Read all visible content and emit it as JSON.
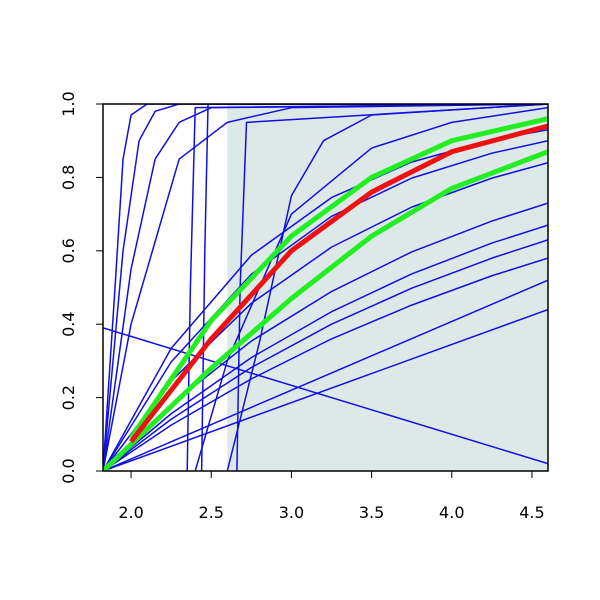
{
  "chart_data": {
    "type": "line",
    "xlim": [
      1.825,
      4.6
    ],
    "ylim": [
      0,
      1
    ],
    "xticks": [
      {
        "value": 2,
        "label": "2.0"
      },
      {
        "value": 2.5,
        "label": "2.5"
      },
      {
        "value": 3,
        "label": "3.0"
      },
      {
        "value": 3.5,
        "label": "3.5"
      },
      {
        "value": 4,
        "label": "4.0"
      },
      {
        "value": 4.5,
        "label": "4.5"
      }
    ],
    "yticks": [
      {
        "value": 0,
        "label": "0.0"
      },
      {
        "value": 0.2,
        "label": "0.2"
      },
      {
        "value": 0.4,
        "label": "0.4"
      },
      {
        "value": 0.6,
        "label": "0.6"
      },
      {
        "value": 0.8,
        "label": "0.8"
      },
      {
        "value": 1,
        "label": "1.0"
      }
    ],
    "shaded_region": {
      "x": [
        2.6,
        4.6
      ],
      "color": "#dde9e9"
    },
    "series": [
      {
        "color": "#1010e0",
        "x": [
          1.825,
          1.9,
          1.95,
          2.0,
          2.1,
          2.3,
          4.6
        ],
        "values": [
          0,
          0.5,
          0.85,
          0.97,
          1,
          1,
          1
        ]
      },
      {
        "color": "#1010e0",
        "x": [
          1.825,
          1.95,
          2.05,
          2.15,
          2.3,
          4.6
        ],
        "values": [
          0,
          0.6,
          0.9,
          0.98,
          1,
          1
        ]
      },
      {
        "color": "#1010e0",
        "x": [
          1.825,
          2.0,
          2.15,
          2.3,
          2.5,
          4.6
        ],
        "values": [
          0,
          0.55,
          0.85,
          0.95,
          0.99,
          1
        ]
      },
      {
        "color": "#1010e0",
        "x": [
          1.825,
          2.0,
          2.3,
          2.6,
          3.0,
          4.6
        ],
        "values": [
          0,
          0.4,
          0.85,
          0.95,
          0.99,
          1
        ]
      },
      {
        "color": "#1010e0",
        "x": [
          2.35,
          2.37,
          2.4,
          4.6
        ],
        "values": [
          0,
          0.5,
          0.99,
          1
        ]
      },
      {
        "color": "#1010e0",
        "x": [
          2.44,
          2.46,
          2.48,
          4.6
        ],
        "values": [
          0,
          0.6,
          1,
          1
        ]
      },
      {
        "color": "#1010e0",
        "x": [
          2.66,
          2.68,
          2.72,
          4.6
        ],
        "values": [
          0,
          0.5,
          0.95,
          1
        ]
      },
      {
        "color": "#1010e0",
        "x": [
          2.6,
          2.8,
          3.0,
          3.2,
          3.5,
          4.6
        ],
        "values": [
          0,
          0.35,
          0.75,
          0.9,
          0.97,
          1
        ]
      },
      {
        "color": "#1010e0",
        "x": [
          2.4,
          2.6,
          3.0,
          3.5,
          4.0,
          4.6
        ],
        "values": [
          0,
          0.3,
          0.7,
          0.88,
          0.95,
          0.99
        ]
      },
      {
        "color": "#1010e0",
        "x": [
          1.825,
          4.6
        ],
        "values": [
          0.39,
          0.02
        ]
      },
      {
        "color": "#1010e0",
        "x": [
          1.825,
          4.6
        ],
        "values": [
          0,
          0.44
        ]
      },
      {
        "color": "#1010e0",
        "x": [
          1.825,
          4.6
        ],
        "values": [
          0,
          0.52
        ]
      },
      {
        "color": "#1010e0",
        "x": [
          1.825,
          2.25,
          2.75,
          3.25,
          3.75,
          4.25,
          4.6
        ],
        "values": [
          0,
          0.125,
          0.251,
          0.36,
          0.452,
          0.532,
          0.58
        ]
      },
      {
        "color": "#1010e0",
        "x": [
          1.825,
          2.25,
          2.75,
          3.25,
          3.75,
          4.25,
          4.6
        ],
        "values": [
          0,
          0.141,
          0.282,
          0.4,
          0.498,
          0.58,
          0.63
        ]
      },
      {
        "color": "#1010e0",
        "x": [
          1.825,
          2.25,
          2.75,
          3.25,
          3.75,
          4.25,
          4.6
        ],
        "values": [
          0,
          0.156,
          0.309,
          0.434,
          0.537,
          0.621,
          0.67
        ]
      },
      {
        "color": "#1010e0",
        "x": [
          1.825,
          2.25,
          2.75,
          3.25,
          3.75,
          4.25,
          4.6
        ],
        "values": [
          0,
          0.181,
          0.354,
          0.489,
          0.597,
          0.681,
          0.73
        ]
      },
      {
        "color": "#1010e0",
        "x": [
          1.825,
          2.25,
          2.75,
          3.25,
          3.75,
          4.25,
          4.6
        ],
        "values": [
          0,
          0.245,
          0.457,
          0.61,
          0.719,
          0.798,
          0.84
        ]
      },
      {
        "color": "#1010e0",
        "x": [
          1.825,
          2.25,
          2.75,
          3.25,
          3.75,
          4.25,
          4.6
        ],
        "values": [
          0,
          0.297,
          0.536,
          0.694,
          0.798,
          0.866,
          0.9
        ]
      },
      {
        "color": "#1010e0",
        "x": [
          1.825,
          2.25,
          2.75,
          3.25,
          3.75,
          4.25,
          4.6
        ],
        "values": [
          0,
          0.334,
          0.588,
          0.745,
          0.842,
          0.902,
          0.93
        ]
      },
      {
        "color": "#22ee22",
        "width": 5,
        "x": [
          1.825,
          2.5,
          3.0,
          3.5,
          4.0,
          4.6
        ],
        "values": [
          0,
          0.28,
          0.47,
          0.64,
          0.77,
          0.87
        ]
      },
      {
        "color": "#22ee22",
        "width": 5,
        "x": [
          2.0,
          2.5,
          3.0,
          3.5,
          4.0,
          4.6
        ],
        "values": [
          0.09,
          0.41,
          0.64,
          0.8,
          0.9,
          0.96
        ]
      },
      {
        "color": "#ee1111",
        "width": 5,
        "x": [
          2.0,
          2.5,
          3.0,
          3.5,
          4.0,
          4.6
        ],
        "values": [
          0.08,
          0.36,
          0.6,
          0.76,
          0.87,
          0.94
        ]
      }
    ]
  }
}
